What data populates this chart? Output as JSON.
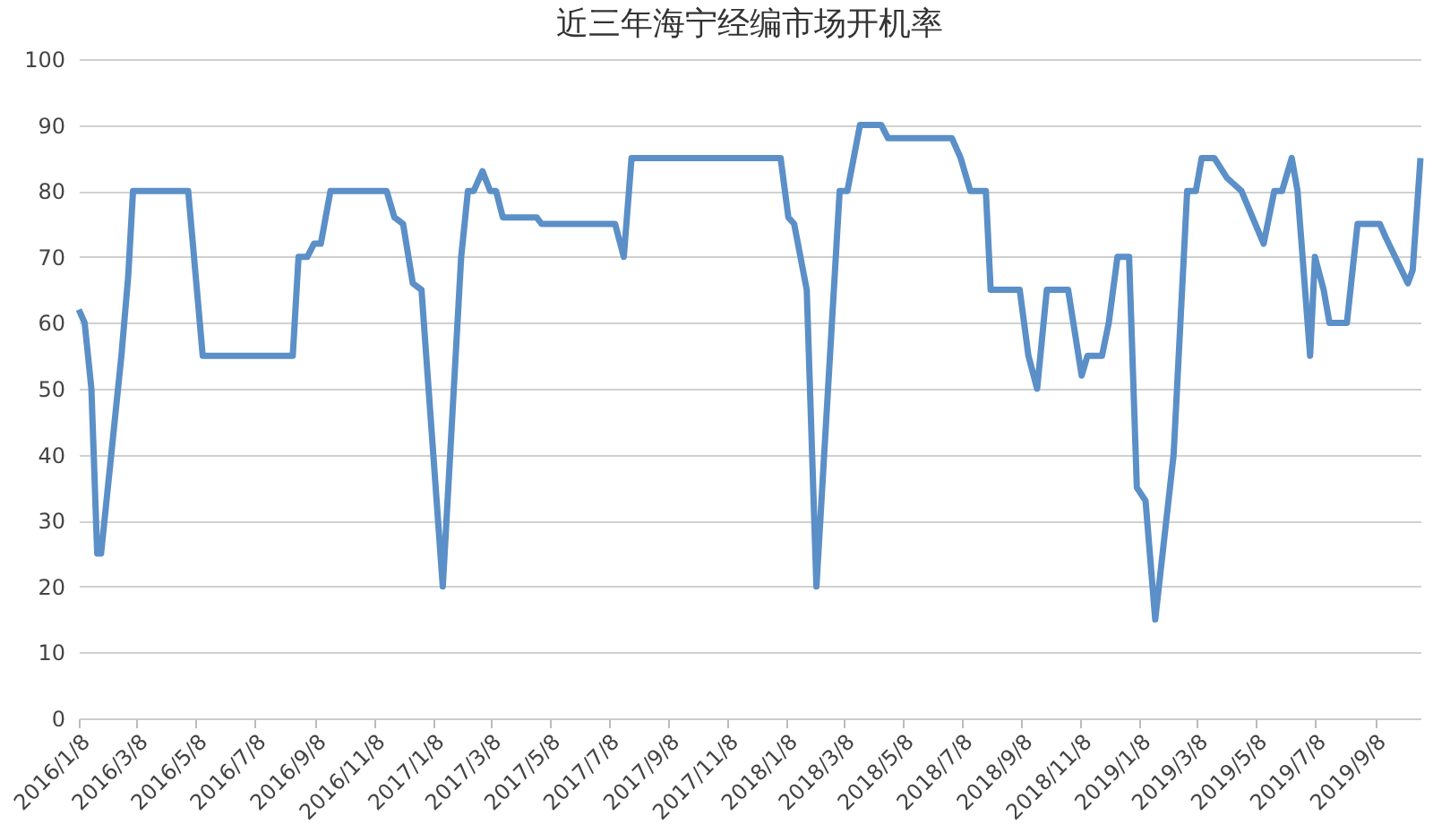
{
  "chart_data": {
    "type": "line",
    "title": "近三年海宁经编市场开机率",
    "x": [
      "2016-01-08",
      "2016-01-14",
      "2016-01-21",
      "2016-01-27",
      "2016-01-31",
      "2016-02-21",
      "2016-02-28",
      "2016-03-04",
      "2016-04-30",
      "2016-05-15",
      "2016-08-16",
      "2016-08-22",
      "2016-08-31",
      "2016-09-07",
      "2016-09-14",
      "2016-09-24",
      "2016-11-21",
      "2016-11-29",
      "2016-12-08",
      "2016-12-18",
      "2016-12-27",
      "2017-01-18",
      "2017-02-06",
      "2017-02-13",
      "2017-02-19",
      "2017-02-28",
      "2017-03-08",
      "2017-03-14",
      "2017-03-21",
      "2017-04-25",
      "2017-04-30",
      "2017-07-15",
      "2017-07-24",
      "2017-08-01",
      "2018-01-02",
      "2018-01-10",
      "2018-01-16",
      "2018-01-29",
      "2018-02-08",
      "2018-02-22",
      "2018-03-04",
      "2018-03-12",
      "2018-03-25",
      "2018-04-16",
      "2018-04-23",
      "2018-06-28",
      "2018-07-07",
      "2018-07-17",
      "2018-08-02",
      "2018-08-07",
      "2018-09-06",
      "2018-09-15",
      "2018-09-24",
      "2018-10-04",
      "2018-10-26",
      "2018-11-09",
      "2018-11-15",
      "2018-11-30",
      "2018-12-07",
      "2018-12-16",
      "2018-12-28",
      "2019-01-05",
      "2019-01-14",
      "2019-01-24",
      "2019-02-12",
      "2019-02-26",
      "2019-03-07",
      "2019-03-13",
      "2019-03-26",
      "2019-04-08",
      "2019-04-23",
      "2019-05-16",
      "2019-05-27",
      "2019-06-04",
      "2019-06-14",
      "2019-06-20",
      "2019-07-03",
      "2019-07-08",
      "2019-07-17",
      "2019-07-23",
      "2019-08-10",
      "2019-08-21",
      "2019-09-13",
      "2019-09-19",
      "2019-10-12",
      "2019-10-17",
      "2019-10-25"
    ],
    "series": [
      {
        "color": "#5b8fc7",
        "values": [
          62,
          60,
          50,
          25,
          25,
          55,
          67,
          80,
          80,
          55,
          55,
          70,
          70,
          72,
          72,
          80,
          80,
          76,
          75,
          66,
          65,
          20,
          70,
          80,
          80,
          83,
          80,
          80,
          76,
          76,
          75,
          75,
          70,
          85,
          85,
          76,
          75,
          65,
          20,
          55,
          80,
          80,
          90,
          90,
          88,
          88,
          85,
          80,
          80,
          65,
          65,
          55,
          50,
          65,
          65,
          52,
          55,
          55,
          60,
          70,
          70,
          35,
          33,
          15,
          40,
          80,
          80,
          85,
          85,
          82,
          80,
          72,
          80,
          80,
          85,
          80,
          55,
          70,
          65,
          60,
          60,
          75,
          75,
          73,
          66,
          68,
          85
        ]
      }
    ],
    "xlim": [
      "2016-01-08",
      "2019-10-25"
    ],
    "xticks": [
      {
        "value": "2016-01-08",
        "label": "2016/1/8"
      },
      {
        "value": "2016-03-08",
        "label": "2016/3/8"
      },
      {
        "value": "2016-05-08",
        "label": "2016/5/8"
      },
      {
        "value": "2016-07-08",
        "label": "2016/7/8"
      },
      {
        "value": "2016-09-08",
        "label": "2016/9/8"
      },
      {
        "value": "2016-11-08",
        "label": "2016/11/8"
      },
      {
        "value": "2017-01-08",
        "label": "2017/1/8"
      },
      {
        "value": "2017-03-08",
        "label": "2017/3/8"
      },
      {
        "value": "2017-05-08",
        "label": "2017/5/8"
      },
      {
        "value": "2017-07-08",
        "label": "2017/7/8"
      },
      {
        "value": "2017-09-08",
        "label": "2017/9/8"
      },
      {
        "value": "2017-11-08",
        "label": "2017/11/8"
      },
      {
        "value": "2018-01-08",
        "label": "2018/1/8"
      },
      {
        "value": "2018-03-08",
        "label": "2018/3/8"
      },
      {
        "value": "2018-05-08",
        "label": "2018/5/8"
      },
      {
        "value": "2018-07-08",
        "label": "2018/7/8"
      },
      {
        "value": "2018-09-08",
        "label": "2018/9/8"
      },
      {
        "value": "2018-11-08",
        "label": "2018/11/8"
      },
      {
        "value": "2019-01-08",
        "label": "2019/1/8"
      },
      {
        "value": "2019-03-08",
        "label": "2019/3/8"
      },
      {
        "value": "2019-05-08",
        "label": "2019/5/8"
      },
      {
        "value": "2019-07-08",
        "label": "2019/7/8"
      },
      {
        "value": "2019-09-08",
        "label": "2019/9/8"
      }
    ],
    "ylim": [
      0,
      100
    ],
    "yticks": [
      0,
      10,
      20,
      30,
      40,
      50,
      60,
      70,
      80,
      90,
      100
    ],
    "grid": "y",
    "marker": "none",
    "line_style": "solid"
  }
}
